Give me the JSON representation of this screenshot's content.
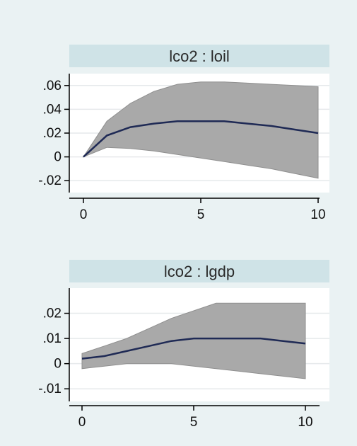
{
  "colors": {
    "figure_background": "#eaf2f3",
    "panel_title_band": "#cfe3e7",
    "plot_area": "#ffffff",
    "gridline": "#e6e9eb",
    "band_fill": "#a9a9a9",
    "line": "#1f2a55",
    "axis": "#000000"
  },
  "chart_data": [
    {
      "type": "area",
      "title": "lco2 : loil",
      "xlabel": "",
      "ylabel": "",
      "x": [
        0,
        1,
        2,
        3,
        4,
        5,
        6,
        7,
        8,
        9,
        10
      ],
      "xlim": [
        0,
        10
      ],
      "ylim": [
        -0.03,
        0.07
      ],
      "x_ticks": [
        0,
        5,
        10
      ],
      "x_tick_labels": [
        "0",
        "5",
        "10"
      ],
      "y_ticks": [
        -0.02,
        0,
        0.02,
        0.04,
        0.06
      ],
      "y_tick_labels": [
        "-.02",
        "0",
        ".02",
        ".04",
        ".06"
      ],
      "grid": true,
      "legend": "none",
      "series": [
        {
          "role": "irf",
          "values": [
            0,
            0.018,
            0.025,
            0.028,
            0.03,
            0.03,
            0.03,
            0.028,
            0.026,
            0.023,
            0.02
          ]
        },
        {
          "role": "ci_lower",
          "values": [
            0,
            0.008,
            0.007,
            0.005,
            0.002,
            -0.001,
            -0.004,
            -0.007,
            -0.01,
            -0.014,
            -0.018
          ]
        },
        {
          "role": "ci_upper",
          "values": [
            0,
            0.03,
            0.045,
            0.055,
            0.061,
            0.063,
            0.063,
            0.062,
            0.061,
            0.06,
            0.059
          ]
        }
      ]
    },
    {
      "type": "area",
      "title": "lco2 : lgdp",
      "xlabel": "",
      "ylabel": "",
      "x": [
        0,
        1,
        2,
        3,
        4,
        5,
        6,
        7,
        8,
        9,
        10
      ],
      "xlim": [
        0,
        10
      ],
      "ylim": [
        -0.015,
        0.03
      ],
      "x_ticks": [
        0,
        5,
        10
      ],
      "x_tick_labels": [
        "0",
        "5",
        "10"
      ],
      "y_ticks": [
        -0.01,
        0,
        0.01,
        0.02
      ],
      "y_tick_labels": [
        "-.01",
        "0",
        ".01",
        ".02"
      ],
      "grid": true,
      "legend": "none",
      "series": [
        {
          "role": "irf",
          "values": [
            0.002,
            0.003,
            0.005,
            0.007,
            0.009,
            0.01,
            0.01,
            0.01,
            0.01,
            0.009,
            0.008
          ]
        },
        {
          "role": "ci_lower",
          "values": [
            -0.002,
            -0.001,
            0.0,
            0.0,
            0.0,
            -0.001,
            -0.002,
            -0.003,
            -0.004,
            -0.005,
            -0.006
          ]
        },
        {
          "role": "ci_upper",
          "values": [
            0.004,
            0.007,
            0.01,
            0.014,
            0.018,
            0.021,
            0.024,
            0.024,
            0.024,
            0.024,
            0.024
          ]
        }
      ]
    }
  ]
}
